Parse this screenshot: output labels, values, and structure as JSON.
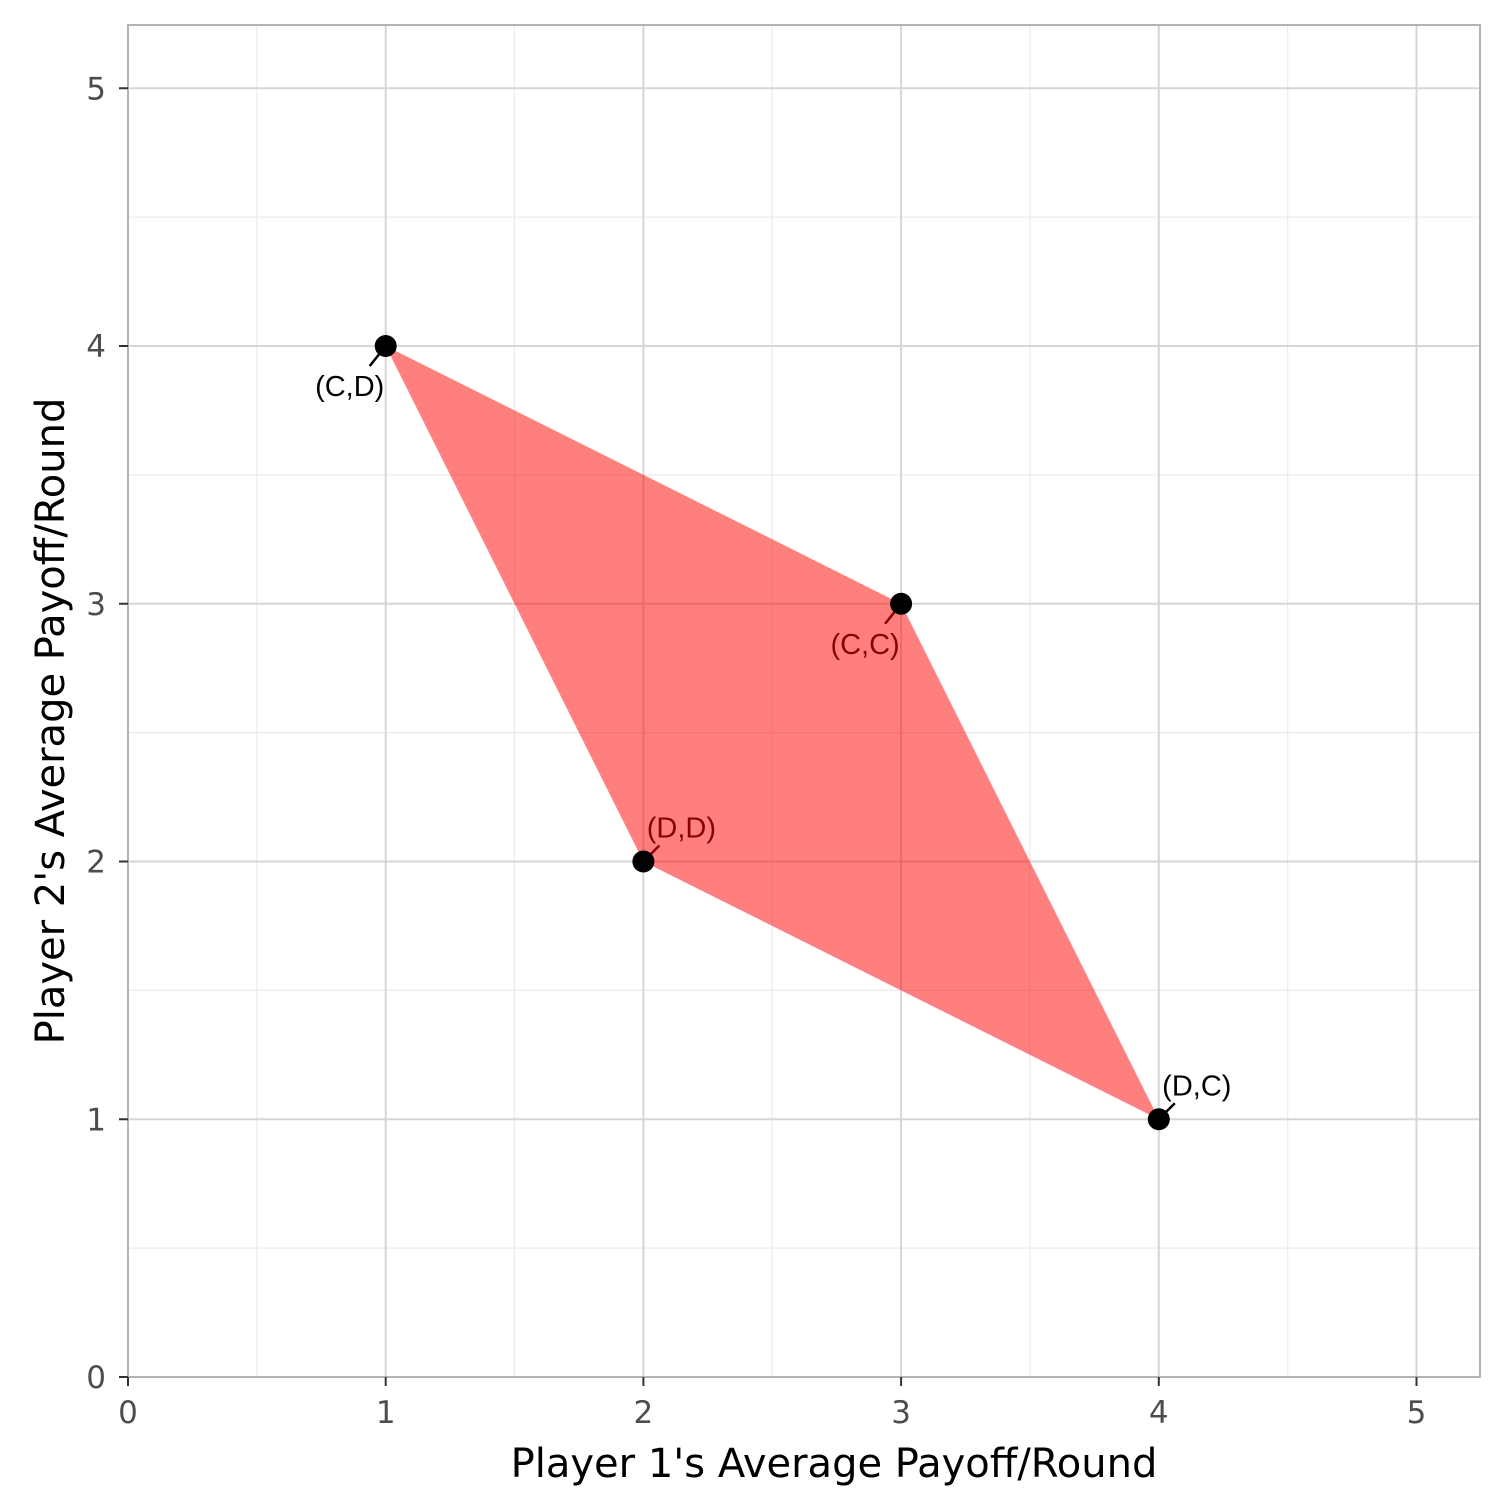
{
  "chart_data": {
    "type": "scatter",
    "title": "",
    "xlabel": "Player 1's Average Payoff/Round",
    "ylabel": "Player 2's Average Payoff/Round",
    "xlim": [
      0,
      5.25
    ],
    "ylim": [
      0,
      5.25
    ],
    "x_ticks": [
      "0",
      "1",
      "2",
      "3",
      "4",
      "5"
    ],
    "y_ticks": [
      "0",
      "1",
      "2",
      "3",
      "4",
      "5"
    ],
    "grid": true,
    "points": [
      {
        "label": "(C,D)",
        "x": 1,
        "y": 4
      },
      {
        "label": "(C,C)",
        "x": 3,
        "y": 3
      },
      {
        "label": "(D,D)",
        "x": 2,
        "y": 2
      },
      {
        "label": "(D,C)",
        "x": 4,
        "y": 1
      }
    ],
    "region": {
      "vertices": [
        [
          1,
          4
        ],
        [
          3,
          3
        ],
        [
          4,
          1
        ],
        [
          2,
          2
        ]
      ],
      "fill_color": "#ff0000",
      "fill_opacity": 0.5
    },
    "colors": {
      "point": "#000000",
      "label_outside": "#000000",
      "label_inside": "#8b0000",
      "grid_major": "#d6d6d6",
      "grid_minor": "#ebebeb",
      "panel_border": "#b3b3b3"
    }
  }
}
